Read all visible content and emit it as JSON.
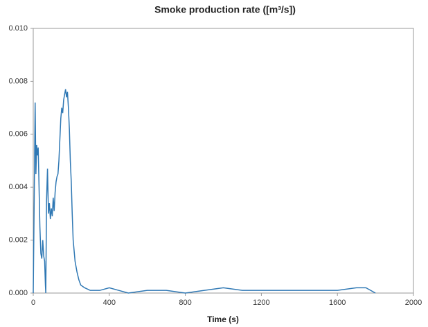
{
  "chart_data": {
    "type": "line",
    "title": "Smoke production rate ([m³/s])",
    "x_label": "Time (s)",
    "x": [
      0,
      5,
      10,
      14,
      18,
      22,
      26,
      30,
      35,
      40,
      45,
      50,
      55,
      60,
      64,
      66,
      70,
      75,
      80,
      85,
      90,
      95,
      100,
      105,
      110,
      115,
      120,
      125,
      130,
      135,
      140,
      145,
      150,
      155,
      160,
      165,
      170,
      175,
      180,
      185,
      190,
      195,
      200,
      205,
      210,
      220,
      230,
      240,
      250,
      270,
      300,
      350,
      400,
      450,
      500,
      600,
      700,
      800,
      900,
      1000,
      1100,
      1200,
      1300,
      1400,
      1500,
      1600,
      1700,
      1750,
      1800
    ],
    "series": [
      {
        "name": "Smoke production rate",
        "color": "#2f78b4",
        "values": [
          0.0,
          0.0035,
          0.0072,
          0.0045,
          0.0056,
          0.0052,
          0.0055,
          0.0042,
          0.0025,
          0.0015,
          0.0013,
          0.002,
          0.0014,
          0.0012,
          0.0003,
          0.0,
          0.0035,
          0.0047,
          0.003,
          0.0034,
          0.0028,
          0.0032,
          0.0029,
          0.0036,
          0.0031,
          0.0038,
          0.0042,
          0.0044,
          0.0045,
          0.005,
          0.0058,
          0.0066,
          0.007,
          0.0068,
          0.0073,
          0.0075,
          0.0077,
          0.0074,
          0.0076,
          0.007,
          0.0062,
          0.005,
          0.0042,
          0.003,
          0.002,
          0.0012,
          0.0008,
          0.0005,
          0.0003,
          0.0002,
          0.0001,
          0.0001,
          0.0002,
          0.0001,
          0.0,
          0.0001,
          0.0001,
          0.0,
          0.0001,
          0.0002,
          0.0001,
          0.0001,
          0.0001,
          0.0001,
          0.0001,
          0.0001,
          0.0002,
          0.0002,
          0.0
        ]
      }
    ],
    "xlim": [
      0,
      2000
    ],
    "xticks": [
      0,
      400,
      800,
      1200,
      1600,
      2000
    ],
    "ylim": [
      0,
      0.01
    ],
    "yticks": [
      {
        "value": 0,
        "label": "0.000"
      },
      {
        "value": 0.002,
        "label": "0.002"
      },
      {
        "value": 0.004,
        "label": "0.004"
      },
      {
        "value": 0.006,
        "label": "0.006"
      },
      {
        "value": 0.008,
        "label": "0.008"
      },
      {
        "value": 0.01,
        "label": "0.010"
      }
    ],
    "grid": false
  }
}
